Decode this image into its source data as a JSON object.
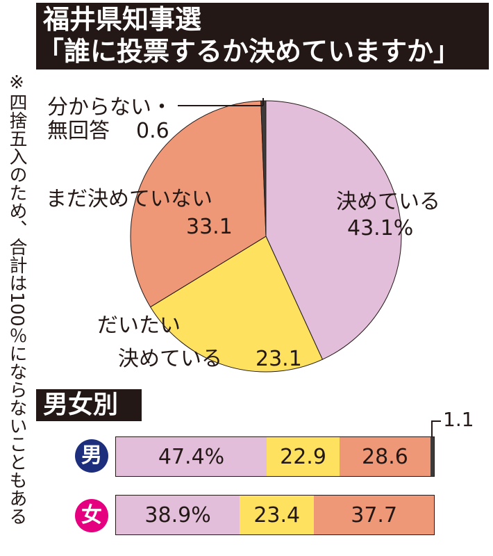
{
  "title_line1": "福井県知事選",
  "title_line2": "「誰に投票するか決めていますか」",
  "side_note": "※四捨五入のため、合計は100％にならないこともある",
  "section_title": "男女別",
  "colors": {
    "decided": "#e2bedb",
    "mostly": "#fde15f",
    "undecided": "#ef9878",
    "unknown": "#3e3a39",
    "male_badge": "#1d2f7c",
    "female_badge": "#e4007f"
  },
  "chart_data": [
    {
      "type": "pie",
      "slices": [
        {
          "key": "decided",
          "label": "決めている",
          "value": 43.1,
          "value_label": "43.1%"
        },
        {
          "key": "mostly",
          "label": "だいたい決めている",
          "value": 23.1,
          "value_label": "23.1"
        },
        {
          "key": "undecided",
          "label": "まだ決めていない",
          "value": 33.1,
          "value_label": "33.1"
        },
        {
          "key": "unknown",
          "label": "分からない・無回答",
          "value": 0.6,
          "value_label": "0.6"
        }
      ],
      "label_lines": {
        "decided": [
          "決めている",
          "43.1%"
        ],
        "mostly": [
          "だいたい",
          "決めている",
          "23.1"
        ],
        "undecided": [
          "まだ決めていない",
          "33.1"
        ],
        "unknown": [
          "分からない・",
          "無回答",
          "0.6"
        ]
      }
    },
    {
      "type": "bar",
      "stacked": true,
      "orientation": "horizontal",
      "categories": [
        "男",
        "女"
      ],
      "series": [
        {
          "key": "decided",
          "values": [
            47.4,
            38.9
          ],
          "labels": [
            "47.4%",
            "38.9%"
          ]
        },
        {
          "key": "mostly",
          "values": [
            22.9,
            23.4
          ],
          "labels": [
            "22.9",
            "23.4"
          ]
        },
        {
          "key": "undecided",
          "values": [
            28.6,
            37.7
          ],
          "labels": [
            "28.6",
            "37.7"
          ]
        },
        {
          "key": "unknown",
          "values": [
            1.1,
            0
          ],
          "labels": [
            "1.1",
            ""
          ]
        }
      ]
    }
  ]
}
